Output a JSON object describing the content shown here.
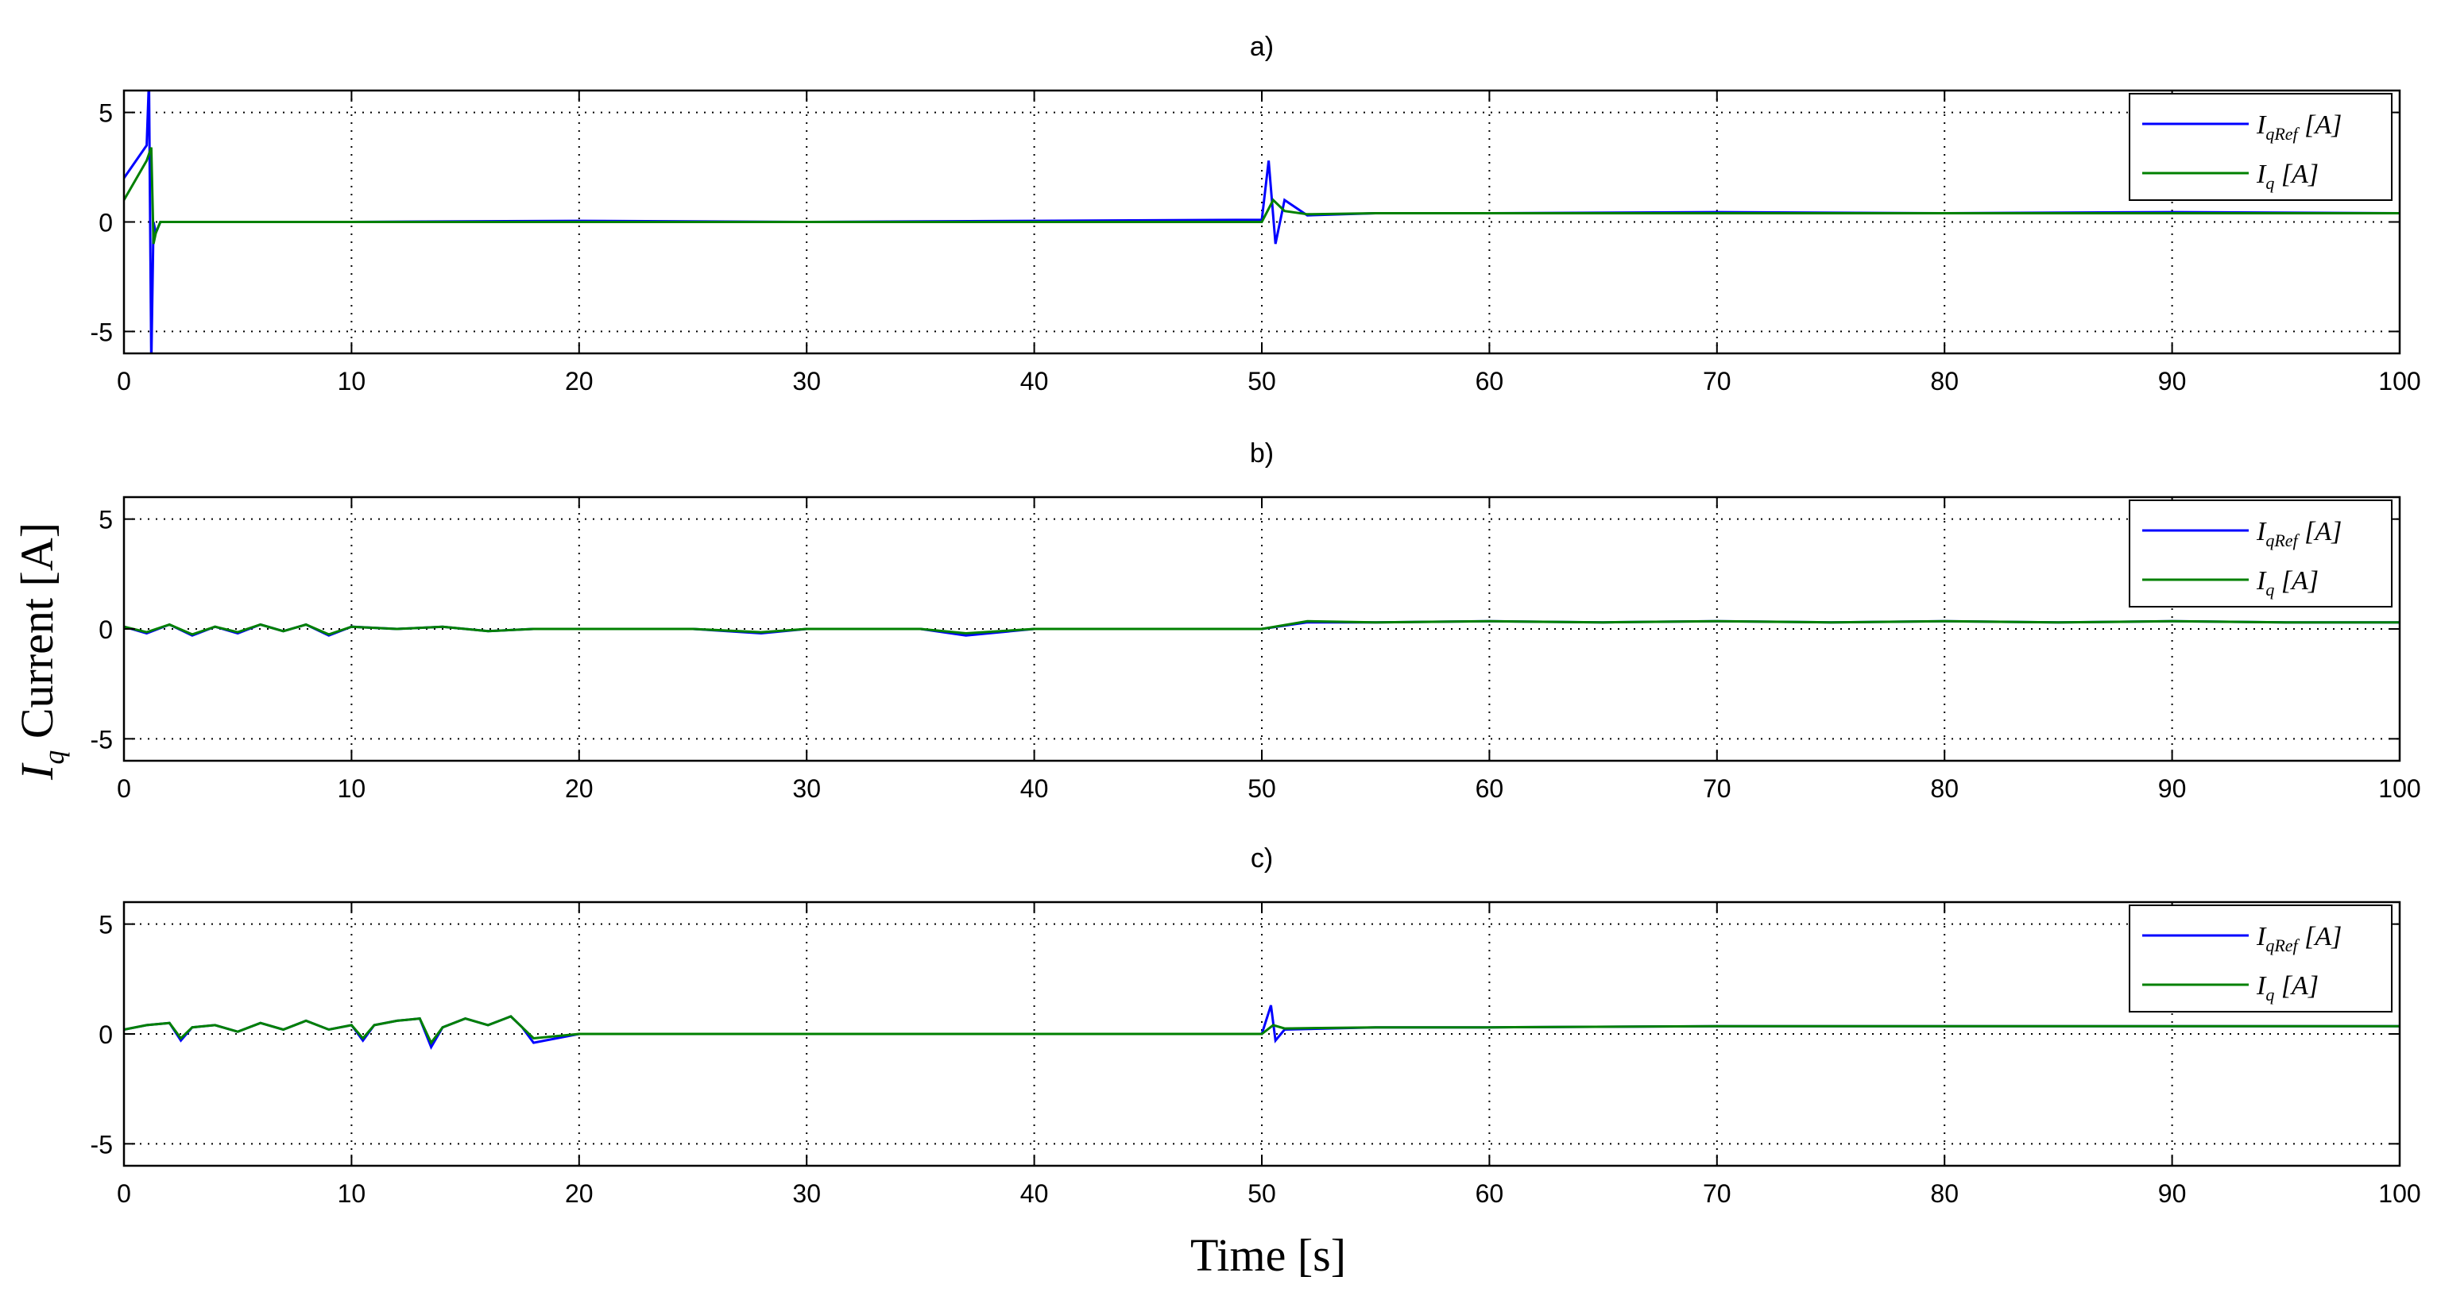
{
  "figure": {
    "ylabel": "I",
    "ylabel_sub": "q",
    "ylabel_rest": " Current [A]",
    "xlabel": "Time [s]"
  },
  "colors": {
    "iqref": "#0000ff",
    "iq": "#008000",
    "grid": "#000000"
  },
  "chart_data": [
    {
      "type": "line",
      "title": "a)",
      "xlim": [
        0,
        100
      ],
      "ylim": [
        -6,
        6
      ],
      "xticks": [
        0,
        10,
        20,
        30,
        40,
        50,
        60,
        70,
        80,
        90,
        100
      ],
      "yticks": [
        -5,
        0,
        5
      ],
      "grid": true,
      "legend_position": "top-right",
      "legend": [
        {
          "main": "I",
          "sub": "qRef",
          "unit": " [A]"
        },
        {
          "main": "I",
          "sub": "q",
          "unit": " [A]"
        }
      ],
      "series": [
        {
          "name": "IqRef [A]",
          "color": "#0000ff",
          "x": [
            0,
            1.0,
            1.1,
            1.2,
            1.3,
            1.4,
            1.6,
            2.0,
            10,
            20,
            30,
            40,
            50,
            50.3,
            50.6,
            51,
            52,
            55,
            60,
            70,
            80,
            90,
            100
          ],
          "y": [
            2.0,
            3.5,
            6.5,
            -6.5,
            0.0,
            -0.5,
            0.0,
            0.0,
            0.0,
            0.05,
            0.0,
            0.05,
            0.1,
            2.8,
            -1.0,
            1.0,
            0.3,
            0.4,
            0.4,
            0.45,
            0.4,
            0.45,
            0.4
          ]
        },
        {
          "name": "Iq [A]",
          "color": "#008000",
          "x": [
            0,
            1.0,
            1.2,
            1.3,
            1.4,
            1.6,
            2.0,
            10,
            20,
            30,
            40,
            50,
            50.5,
            51,
            52,
            55,
            60,
            70,
            80,
            90,
            100
          ],
          "y": [
            1.0,
            2.8,
            3.4,
            -1.0,
            -0.5,
            0.0,
            0.0,
            0.0,
            0.0,
            0.0,
            0.0,
            0.0,
            1.0,
            0.5,
            0.35,
            0.4,
            0.4,
            0.4,
            0.4,
            0.4,
            0.4
          ]
        }
      ]
    },
    {
      "type": "line",
      "title": "b)",
      "xlim": [
        0,
        100
      ],
      "ylim": [
        -6,
        6
      ],
      "xticks": [
        0,
        10,
        20,
        30,
        40,
        50,
        60,
        70,
        80,
        90,
        100
      ],
      "yticks": [
        -5,
        0,
        5
      ],
      "grid": true,
      "legend_position": "top-right",
      "legend": [
        {
          "main": "I",
          "sub": "qRef",
          "unit": " [A]"
        },
        {
          "main": "I",
          "sub": "q",
          "unit": " [A]"
        }
      ],
      "series": [
        {
          "name": "IqRef [A]",
          "color": "#0000ff",
          "x": [
            0,
            1,
            2,
            3,
            4,
            5,
            6,
            7,
            8,
            9,
            10,
            12,
            14,
            16,
            18,
            20,
            25,
            28,
            30,
            35,
            37,
            40,
            45,
            50,
            52,
            55,
            60,
            65,
            70,
            75,
            80,
            85,
            90,
            95,
            100
          ],
          "y": [
            0.1,
            -0.2,
            0.2,
            -0.3,
            0.1,
            -0.2,
            0.2,
            -0.1,
            0.2,
            -0.3,
            0.1,
            0.0,
            0.1,
            -0.1,
            0.0,
            0.0,
            0.0,
            -0.2,
            0.0,
            0.0,
            -0.3,
            0.0,
            0.0,
            0.0,
            0.3,
            0.3,
            0.35,
            0.3,
            0.35,
            0.3,
            0.35,
            0.3,
            0.35,
            0.3,
            0.3
          ]
        },
        {
          "name": "Iq [A]",
          "color": "#008000",
          "x": [
            0,
            1,
            2,
            3,
            4,
            5,
            6,
            7,
            8,
            9,
            10,
            12,
            14,
            16,
            18,
            20,
            25,
            28,
            30,
            35,
            37,
            40,
            45,
            50,
            52,
            55,
            60,
            65,
            70,
            75,
            80,
            85,
            90,
            95,
            100
          ],
          "y": [
            0.1,
            -0.15,
            0.2,
            -0.25,
            0.1,
            -0.15,
            0.2,
            -0.1,
            0.2,
            -0.25,
            0.1,
            0.0,
            0.1,
            -0.1,
            0.0,
            0.0,
            0.0,
            -0.15,
            0.0,
            0.0,
            -0.2,
            0.0,
            0.0,
            0.0,
            0.35,
            0.3,
            0.35,
            0.3,
            0.35,
            0.3,
            0.35,
            0.3,
            0.35,
            0.3,
            0.3
          ]
        }
      ]
    },
    {
      "type": "line",
      "title": "c)",
      "xlim": [
        0,
        100
      ],
      "ylim": [
        -6,
        6
      ],
      "xticks": [
        0,
        10,
        20,
        30,
        40,
        50,
        60,
        70,
        80,
        90,
        100
      ],
      "yticks": [
        -5,
        0,
        5
      ],
      "grid": true,
      "legend_position": "top-right",
      "legend": [
        {
          "main": "I",
          "sub": "qRef",
          "unit": " [A]"
        },
        {
          "main": "I",
          "sub": "q",
          "unit": " [A]"
        }
      ],
      "series": [
        {
          "name": "IqRef [A]",
          "color": "#0000ff",
          "x": [
            0,
            1,
            2,
            2.5,
            3,
            4,
            5,
            6,
            7,
            8,
            9,
            10,
            10.5,
            11,
            12,
            13,
            13.5,
            14,
            15,
            16,
            17,
            17.5,
            18,
            20,
            30,
            40,
            50,
            50.4,
            50.6,
            51,
            55,
            60,
            70,
            80,
            90,
            100
          ],
          "y": [
            0.2,
            0.4,
            0.5,
            -0.3,
            0.3,
            0.4,
            0.1,
            0.5,
            0.2,
            0.6,
            0.2,
            0.4,
            -0.3,
            0.4,
            0.6,
            0.7,
            -0.6,
            0.3,
            0.7,
            0.4,
            0.8,
            0.3,
            -0.4,
            0.0,
            0.0,
            0.0,
            0.0,
            1.3,
            -0.3,
            0.2,
            0.3,
            0.3,
            0.35,
            0.35,
            0.35,
            0.35
          ]
        },
        {
          "name": "Iq [A]",
          "color": "#008000",
          "x": [
            0,
            1,
            2,
            2.5,
            3,
            4,
            5,
            6,
            7,
            8,
            9,
            10,
            10.5,
            11,
            12,
            13,
            13.5,
            14,
            15,
            16,
            17,
            17.5,
            18,
            20,
            30,
            40,
            50,
            50.5,
            51,
            55,
            60,
            70,
            80,
            90,
            100
          ],
          "y": [
            0.2,
            0.4,
            0.5,
            -0.2,
            0.3,
            0.4,
            0.1,
            0.5,
            0.2,
            0.6,
            0.2,
            0.4,
            -0.2,
            0.4,
            0.6,
            0.7,
            -0.4,
            0.3,
            0.7,
            0.4,
            0.8,
            0.3,
            -0.2,
            0.0,
            0.0,
            0.0,
            0.0,
            0.4,
            0.25,
            0.3,
            0.3,
            0.35,
            0.35,
            0.35,
            0.35
          ]
        }
      ]
    }
  ]
}
